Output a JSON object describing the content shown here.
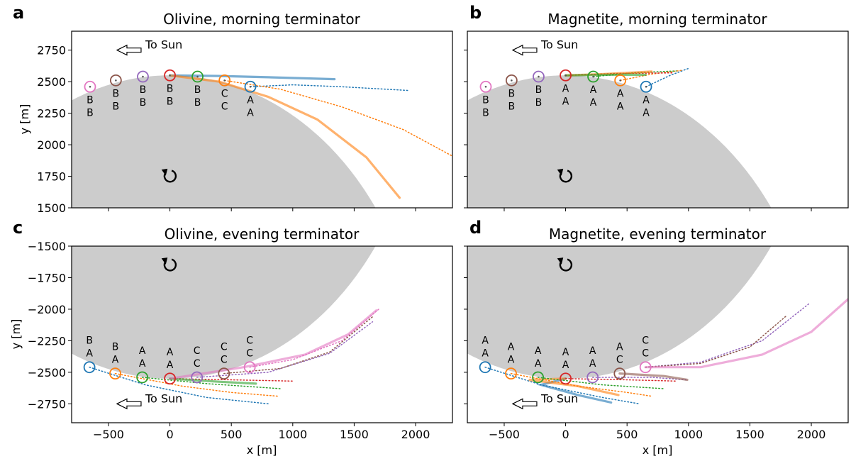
{
  "colors": {
    "body": "#cccccc",
    "series": [
      "#1f77b4",
      "#ff7f0e",
      "#2ca02c",
      "#d62728",
      "#9467bd",
      "#8c564b",
      "#e377c2"
    ]
  },
  "chart_data": [
    {
      "type": "line",
      "panel_letter": "a",
      "title": "Olivine, morning terminator",
      "xlabel": "",
      "ylabel": "y [m]",
      "xlim": [
        -800,
        2300
      ],
      "ylim": [
        1500,
        2900
      ],
      "yticks": [
        1500,
        1750,
        2000,
        2250,
        2500,
        2750
      ],
      "body_side": "below",
      "sun_text": "To Sun",
      "sun_pos": [
        -350,
        2750
      ],
      "rotation_icon": "counterclockwise-arrow-icon",
      "rotation_pos": [
        0,
        1750
      ],
      "particles": [
        {
          "x": -650,
          "y": 2460,
          "color_index": 6,
          "labels": [
            "B",
            "B"
          ]
        },
        {
          "x": -440,
          "y": 2510,
          "color_index": 5,
          "labels": [
            "B",
            "B"
          ]
        },
        {
          "x": -220,
          "y": 2540,
          "color_index": 4,
          "labels": [
            "B",
            "B"
          ]
        },
        {
          "x": 0,
          "y": 2550,
          "color_index": 3,
          "labels": [
            "B",
            "B"
          ]
        },
        {
          "x": 225,
          "y": 2540,
          "color_index": 2,
          "labels": [
            "B",
            "B"
          ]
        },
        {
          "x": 445,
          "y": 2510,
          "color_index": 1,
          "labels": [
            "C",
            "C"
          ]
        },
        {
          "x": 655,
          "y": 2460,
          "color_index": 0,
          "labels": [
            "A",
            "A"
          ]
        }
      ],
      "tracks": [
        {
          "color_index": 0,
          "style": "dotted",
          "points": [
            [
              655,
              2460
            ],
            [
              1000,
              2475
            ],
            [
              1400,
              2460
            ],
            [
              1950,
              2430
            ]
          ]
        },
        {
          "color_index": 0,
          "style": "solid",
          "points": [
            [
              0,
              2550
            ],
            [
              400,
              2545
            ],
            [
              800,
              2535
            ],
            [
              1340,
              2520
            ]
          ]
        },
        {
          "color_index": 1,
          "style": "dotted",
          "points": [
            [
              445,
              2510
            ],
            [
              900,
              2440
            ],
            [
              1400,
              2300
            ],
            [
              1900,
              2120
            ],
            [
              2300,
              1910
            ]
          ]
        },
        {
          "color_index": 1,
          "style": "solid",
          "points": [
            [
              0,
              2550
            ],
            [
              400,
              2500
            ],
            [
              800,
              2380
            ],
            [
              1200,
              2200
            ],
            [
              1600,
              1900
            ],
            [
              1870,
              1580
            ]
          ]
        }
      ]
    },
    {
      "type": "line",
      "panel_letter": "b",
      "title": "Magnetite, morning terminator",
      "xlabel": "",
      "ylabel": "",
      "xlim": [
        -800,
        2300
      ],
      "ylim": [
        1500,
        2900
      ],
      "yticks": [
        1500,
        1750,
        2000,
        2250,
        2500,
        2750
      ],
      "body_side": "below",
      "sun_text": "To Sun",
      "sun_pos": [
        -350,
        2750
      ],
      "rotation_icon": "counterclockwise-arrow-icon",
      "rotation_pos": [
        0,
        1750
      ],
      "particles": [
        {
          "x": -650,
          "y": 2460,
          "color_index": 6,
          "labels": [
            "B",
            "B"
          ]
        },
        {
          "x": -440,
          "y": 2510,
          "color_index": 5,
          "labels": [
            "B",
            "B"
          ]
        },
        {
          "x": -220,
          "y": 2540,
          "color_index": 4,
          "labels": [
            "B",
            "B"
          ]
        },
        {
          "x": 0,
          "y": 2550,
          "color_index": 3,
          "labels": [
            "A",
            "A"
          ]
        },
        {
          "x": 225,
          "y": 2540,
          "color_index": 2,
          "labels": [
            "A",
            "A"
          ]
        },
        {
          "x": 445,
          "y": 2510,
          "color_index": 1,
          "labels": [
            "A",
            "A"
          ]
        },
        {
          "x": 655,
          "y": 2460,
          "color_index": 0,
          "labels": [
            "A",
            "A"
          ]
        }
      ],
      "tracks": [
        {
          "color_index": 0,
          "style": "dotted",
          "points": [
            [
              655,
              2460
            ],
            [
              850,
              2550
            ],
            [
              1000,
              2605
            ]
          ]
        },
        {
          "color_index": 1,
          "style": "dotted",
          "points": [
            [
              445,
              2510
            ],
            [
              700,
              2560
            ],
            [
              950,
              2590
            ]
          ]
        },
        {
          "color_index": 2,
          "style": "dotted",
          "points": [
            [
              225,
              2540
            ],
            [
              550,
              2570
            ],
            [
              900,
              2585
            ]
          ]
        },
        {
          "color_index": 3,
          "style": "dotted",
          "points": [
            [
              0,
              2550
            ],
            [
              400,
              2565
            ],
            [
              880,
              2570
            ]
          ]
        },
        {
          "color_index": 1,
          "style": "solid",
          "points": [
            [
              0,
              2550
            ],
            [
              300,
              2560
            ],
            [
              700,
              2580
            ]
          ]
        },
        {
          "color_index": 2,
          "style": "solid",
          "points": [
            [
              0,
              2550
            ],
            [
              350,
              2555
            ],
            [
              650,
              2555
            ]
          ]
        }
      ]
    },
    {
      "type": "line",
      "panel_letter": "c",
      "title": "Olivine, evening terminator",
      "xlabel": "x [m]",
      "ylabel": "y [m]",
      "xlim": [
        -800,
        2300
      ],
      "ylim": [
        -2900,
        -1500
      ],
      "yticks": [
        -2750,
        -2500,
        -2250,
        -2000,
        -1750,
        -1500
      ],
      "body_side": "above",
      "sun_text": "To Sun",
      "sun_pos": [
        -350,
        -2750
      ],
      "rotation_icon": "counterclockwise-arrow-icon",
      "rotation_pos": [
        0,
        -1650
      ],
      "particles": [
        {
          "x": -655,
          "y": -2460,
          "color_index": 0,
          "labels": [
            "B",
            "A"
          ]
        },
        {
          "x": -445,
          "y": -2510,
          "color_index": 1,
          "labels": [
            "B",
            "A"
          ]
        },
        {
          "x": -225,
          "y": -2540,
          "color_index": 2,
          "labels": [
            "A",
            "A"
          ]
        },
        {
          "x": 0,
          "y": -2550,
          "color_index": 3,
          "labels": [
            "A",
            "A"
          ]
        },
        {
          "x": 220,
          "y": -2540,
          "color_index": 4,
          "labels": [
            "C",
            "C"
          ]
        },
        {
          "x": 440,
          "y": -2510,
          "color_index": 5,
          "labels": [
            "C",
            "C"
          ]
        },
        {
          "x": 650,
          "y": -2460,
          "color_index": 6,
          "labels": [
            "C",
            "C"
          ]
        }
      ],
      "tracks": [
        {
          "color_index": 0,
          "style": "dotted",
          "points": [
            [
              -655,
              -2460
            ],
            [
              -200,
              -2600
            ],
            [
              300,
              -2700
            ],
            [
              800,
              -2750
            ]
          ]
        },
        {
          "color_index": 1,
          "style": "dotted",
          "points": [
            [
              -445,
              -2510
            ],
            [
              100,
              -2610
            ],
            [
              500,
              -2660
            ],
            [
              880,
              -2690
            ]
          ]
        },
        {
          "color_index": 2,
          "style": "dotted",
          "points": [
            [
              -225,
              -2540
            ],
            [
              300,
              -2590
            ],
            [
              900,
              -2630
            ]
          ]
        },
        {
          "color_index": 3,
          "style": "dotted",
          "points": [
            [
              0,
              -2550
            ],
            [
              500,
              -2560
            ],
            [
              1000,
              -2570
            ]
          ]
        },
        {
          "color_index": 2,
          "style": "solid",
          "points": [
            [
              0,
              -2550
            ],
            [
              400,
              -2575
            ],
            [
              700,
              -2590
            ]
          ]
        },
        {
          "color_index": 4,
          "style": "dotted",
          "points": [
            [
              220,
              -2540
            ],
            [
              800,
              -2500
            ],
            [
              1300,
              -2350
            ],
            [
              1650,
              -2100
            ]
          ]
        },
        {
          "color_index": 5,
          "style": "dotted",
          "points": [
            [
              440,
              -2510
            ],
            [
              900,
              -2470
            ],
            [
              1300,
              -2340
            ],
            [
              1650,
              -2060
            ]
          ]
        },
        {
          "color_index": 6,
          "style": "dotted",
          "points": [
            [
              650,
              -2460
            ],
            [
              1000,
              -2400
            ],
            [
              1400,
              -2250
            ],
            [
              1700,
              -2000
            ]
          ]
        },
        {
          "color_index": 6,
          "style": "solid",
          "points": [
            [
              0,
              -2550
            ],
            [
              600,
              -2460
            ],
            [
              1100,
              -2360
            ],
            [
              1450,
              -2200
            ],
            [
              1680,
              -2010
            ]
          ]
        }
      ]
    },
    {
      "type": "line",
      "panel_letter": "d",
      "title": "Magnetite, evening terminator",
      "xlabel": "x [m]",
      "ylabel": "",
      "xlim": [
        -800,
        2300
      ],
      "ylim": [
        -2900,
        -1500
      ],
      "yticks": [
        -2750,
        -2500,
        -2250,
        -2000,
        -1750,
        -1500
      ],
      "body_side": "above",
      "sun_text": "To Sun",
      "sun_pos": [
        -350,
        -2750
      ],
      "rotation_icon": "counterclockwise-arrow-icon",
      "rotation_pos": [
        0,
        -1650
      ],
      "particles": [
        {
          "x": -655,
          "y": -2460,
          "color_index": 0,
          "labels": [
            "A",
            "A"
          ]
        },
        {
          "x": -445,
          "y": -2510,
          "color_index": 1,
          "labels": [
            "A",
            "A"
          ]
        },
        {
          "x": -225,
          "y": -2540,
          "color_index": 2,
          "labels": [
            "A",
            "A"
          ]
        },
        {
          "x": 0,
          "y": -2550,
          "color_index": 3,
          "labels": [
            "A",
            "A"
          ]
        },
        {
          "x": 220,
          "y": -2540,
          "color_index": 4,
          "labels": [
            "A",
            "A"
          ]
        },
        {
          "x": 440,
          "y": -2510,
          "color_index": 5,
          "labels": [
            "A",
            "C"
          ]
        },
        {
          "x": 650,
          "y": -2460,
          "color_index": 6,
          "labels": [
            "C",
            "C"
          ]
        }
      ],
      "tracks": [
        {
          "color_index": 0,
          "style": "dotted",
          "points": [
            [
              -655,
              -2460
            ],
            [
              -200,
              -2600
            ],
            [
              300,
              -2700
            ],
            [
              600,
              -2750
            ]
          ]
        },
        {
          "color_index": 0,
          "style": "solid",
          "points": [
            [
              0,
              -2550
            ],
            [
              -200,
              -2600
            ],
            [
              100,
              -2680
            ],
            [
              370,
              -2740
            ]
          ]
        },
        {
          "color_index": 1,
          "style": "dotted",
          "points": [
            [
              -445,
              -2510
            ],
            [
              100,
              -2610
            ],
            [
              500,
              -2660
            ],
            [
              700,
              -2690
            ]
          ]
        },
        {
          "color_index": 1,
          "style": "solid",
          "points": [
            [
              0,
              -2550
            ],
            [
              -300,
              -2560
            ],
            [
              100,
              -2610
            ],
            [
              430,
              -2680
            ]
          ]
        },
        {
          "color_index": 2,
          "style": "dotted",
          "points": [
            [
              -225,
              -2540
            ],
            [
              300,
              -2600
            ],
            [
              800,
              -2630
            ]
          ]
        },
        {
          "color_index": 3,
          "style": "dotted",
          "points": [
            [
              0,
              -2550
            ],
            [
              500,
              -2560
            ],
            [
              900,
              -2570
            ]
          ]
        },
        {
          "color_index": 4,
          "style": "dotted",
          "points": [
            [
              220,
              -2540
            ],
            [
              700,
              -2540
            ],
            [
              980,
              -2560
            ]
          ]
        },
        {
          "color_index": 5,
          "style": "solid",
          "points": [
            [
              440,
              -2510
            ],
            [
              800,
              -2530
            ],
            [
              990,
              -2560
            ]
          ]
        },
        {
          "color_index": 4,
          "style": "dotted",
          "points": [
            [
              650,
              -2460
            ],
            [
              1100,
              -2420
            ],
            [
              1600,
              -2250
            ],
            [
              1990,
              -1950
            ]
          ]
        },
        {
          "color_index": 5,
          "style": "dotted",
          "points": [
            [
              650,
              -2460
            ],
            [
              1100,
              -2430
            ],
            [
              1500,
              -2300
            ],
            [
              1800,
              -2050
            ]
          ]
        },
        {
          "color_index": 6,
          "style": "solid",
          "points": [
            [
              650,
              -2460
            ],
            [
              1100,
              -2460
            ],
            [
              1600,
              -2360
            ],
            [
              2000,
              -2180
            ],
            [
              2300,
              -1920
            ]
          ]
        }
      ]
    }
  ]
}
